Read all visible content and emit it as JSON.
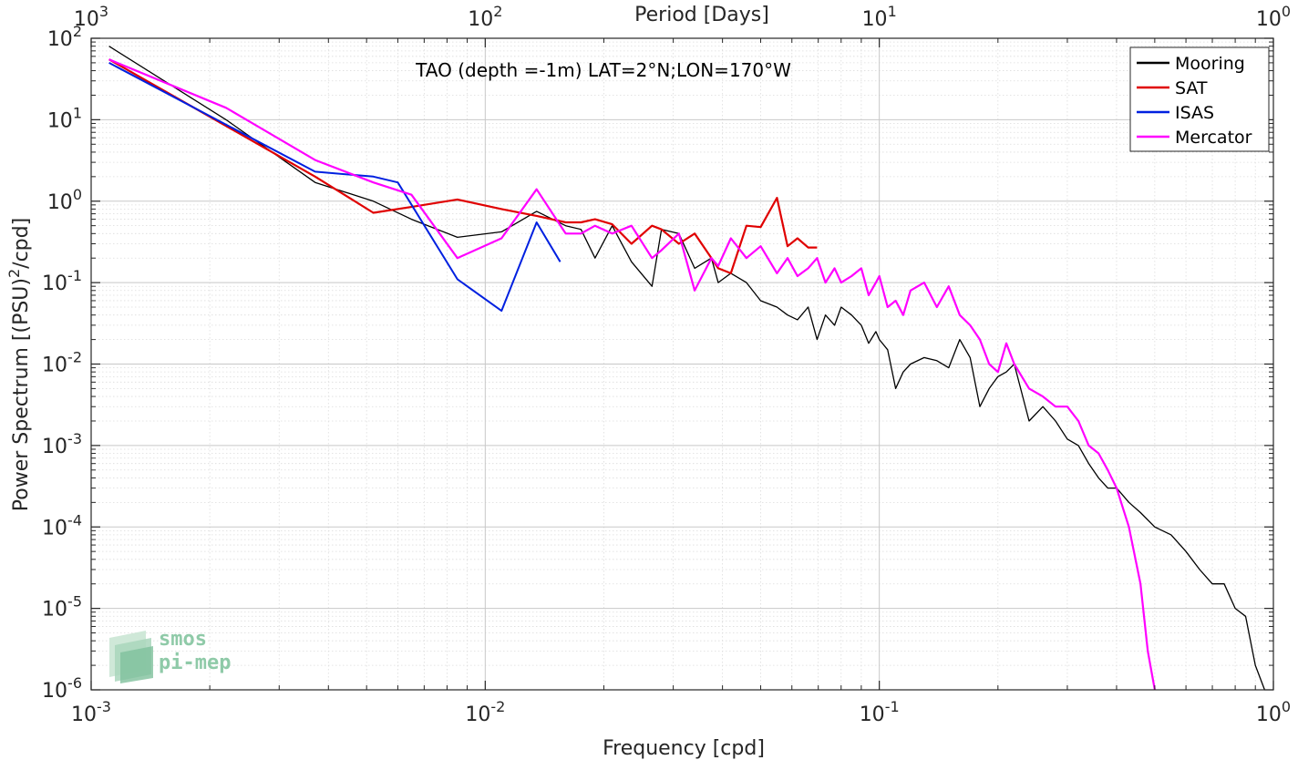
{
  "chart_data": {
    "type": "line",
    "title": "TAO (depth =-1m) LAT=2°N;LON=170°W",
    "xlabel": "Frequency [cpd]",
    "ylabel": "Power Spectrum [(PSU)²/cpd]",
    "top_xlabel": "Period [Days]",
    "xscale": "log",
    "yscale": "log",
    "xlim": [
      0.001,
      1
    ],
    "ylim": [
      1e-06,
      100
    ],
    "top_xlim": [
      1000,
      1
    ],
    "x_ticks": [
      0.001,
      0.01,
      0.1,
      1
    ],
    "x_tick_labels": [
      [
        "10",
        "-3"
      ],
      [
        "10",
        "-2"
      ],
      [
        "10",
        "-1"
      ],
      [
        "10",
        "0"
      ]
    ],
    "top_ticks": [
      1000,
      100,
      10,
      1
    ],
    "top_tick_labels": [
      [
        "10",
        "3"
      ],
      [
        "10",
        "2"
      ],
      [
        "10",
        "1"
      ],
      [
        "10",
        "0"
      ]
    ],
    "y_ticks": [
      1e-06,
      1e-05,
      0.0001,
      0.001,
      0.01,
      0.1,
      1,
      10,
      100
    ],
    "y_tick_labels": [
      [
        "10",
        "-6"
      ],
      [
        "10",
        "-5"
      ],
      [
        "10",
        "-4"
      ],
      [
        "10",
        "-3"
      ],
      [
        "10",
        "-2"
      ],
      [
        "10",
        "-1"
      ],
      [
        "10",
        "0"
      ],
      [
        "10",
        "1"
      ],
      [
        "10",
        "2"
      ]
    ],
    "grid": true,
    "legend_position": "top-right",
    "series": [
      {
        "name": "Mooring",
        "color": "#000000",
        "width": 1.3,
        "x": [
          0.00111,
          0.0022,
          0.0037,
          0.0052,
          0.0065,
          0.0085,
          0.011,
          0.0135,
          0.016,
          0.0175,
          0.019,
          0.021,
          0.0235,
          0.0265,
          0.028,
          0.031,
          0.034,
          0.0375,
          0.039,
          0.042,
          0.046,
          0.05,
          0.055,
          0.0585,
          0.062,
          0.066,
          0.0695,
          0.073,
          0.077,
          0.08,
          0.085,
          0.09,
          0.094,
          0.098,
          0.1,
          0.105,
          0.11,
          0.115,
          0.12,
          0.13,
          0.14,
          0.15,
          0.16,
          0.17,
          0.18,
          0.19,
          0.2,
          0.21,
          0.22,
          0.24,
          0.26,
          0.28,
          0.3,
          0.32,
          0.34,
          0.36,
          0.38,
          0.4,
          0.43,
          0.46,
          0.5,
          0.55,
          0.6,
          0.65,
          0.7,
          0.75,
          0.8,
          0.85,
          0.9,
          0.95
        ],
        "y": [
          80,
          10,
          1.7,
          1.0,
          0.6,
          0.36,
          0.42,
          0.75,
          0.5,
          0.45,
          0.2,
          0.5,
          0.18,
          0.09,
          0.45,
          0.4,
          0.15,
          0.2,
          0.1,
          0.13,
          0.1,
          0.06,
          0.05,
          0.04,
          0.035,
          0.05,
          0.02,
          0.04,
          0.03,
          0.05,
          0.04,
          0.03,
          0.018,
          0.025,
          0.02,
          0.015,
          0.005,
          0.008,
          0.01,
          0.012,
          0.011,
          0.009,
          0.02,
          0.012,
          0.003,
          0.005,
          0.007,
          0.008,
          0.01,
          0.002,
          0.003,
          0.002,
          0.0012,
          0.001,
          0.0006,
          0.0004,
          0.0003,
          0.0003,
          0.0002,
          0.00015,
          0.0001,
          8e-05,
          5e-05,
          3e-05,
          2e-05,
          2e-05,
          1e-05,
          8e-06,
          2e-06,
          1e-06
        ]
      },
      {
        "name": "SAT",
        "color": "#e00000",
        "width": 2.2,
        "x": [
          0.00111,
          0.0037,
          0.0052,
          0.0065,
          0.0085,
          0.011,
          0.0135,
          0.016,
          0.0175,
          0.019,
          0.021,
          0.0235,
          0.0265,
          0.028,
          0.031,
          0.034,
          0.0375,
          0.039,
          0.042,
          0.046,
          0.05,
          0.055,
          0.0585,
          0.062,
          0.066,
          0.0695
        ],
        "y": [
          55,
          2.0,
          0.72,
          0.85,
          1.05,
          0.8,
          0.66,
          0.55,
          0.55,
          0.6,
          0.52,
          0.3,
          0.5,
          0.45,
          0.3,
          0.4,
          0.2,
          0.15,
          0.13,
          0.5,
          0.48,
          1.1,
          0.28,
          0.35,
          0.27,
          0.27
        ]
      },
      {
        "name": "ISAS",
        "color": "#0020e0",
        "width": 2.0,
        "x": [
          0.00111,
          0.0037,
          0.0052,
          0.006,
          0.0085,
          0.011,
          0.0135,
          0.0155
        ],
        "y": [
          50,
          2.3,
          2.0,
          1.7,
          0.11,
          0.045,
          0.55,
          0.18
        ]
      },
      {
        "name": "Mercator",
        "color": "#ff00ff",
        "width": 2.2,
        "x": [
          0.00111,
          0.0022,
          0.0037,
          0.0052,
          0.0065,
          0.0085,
          0.011,
          0.0135,
          0.016,
          0.0175,
          0.019,
          0.021,
          0.0235,
          0.0265,
          0.028,
          0.031,
          0.034,
          0.0375,
          0.039,
          0.042,
          0.046,
          0.05,
          0.055,
          0.0585,
          0.062,
          0.066,
          0.0695,
          0.073,
          0.077,
          0.08,
          0.085,
          0.09,
          0.094,
          0.098,
          0.1,
          0.105,
          0.11,
          0.115,
          0.12,
          0.13,
          0.14,
          0.15,
          0.16,
          0.17,
          0.18,
          0.19,
          0.2,
          0.21,
          0.22,
          0.24,
          0.26,
          0.28,
          0.3,
          0.32,
          0.34,
          0.36,
          0.38,
          0.4,
          0.43,
          0.46,
          0.48,
          0.5
        ],
        "y": [
          55,
          14,
          3.2,
          1.7,
          1.2,
          0.2,
          0.35,
          1.4,
          0.4,
          0.4,
          0.5,
          0.4,
          0.5,
          0.2,
          0.25,
          0.4,
          0.08,
          0.2,
          0.16,
          0.35,
          0.2,
          0.28,
          0.13,
          0.2,
          0.12,
          0.15,
          0.2,
          0.1,
          0.15,
          0.1,
          0.12,
          0.15,
          0.07,
          0.1,
          0.12,
          0.05,
          0.06,
          0.04,
          0.08,
          0.1,
          0.05,
          0.09,
          0.04,
          0.03,
          0.02,
          0.01,
          0.008,
          0.018,
          0.01,
          0.005,
          0.004,
          0.003,
          0.003,
          0.002,
          0.001,
          0.0008,
          0.0005,
          0.0003,
          0.0001,
          2e-05,
          3e-06,
          1e-06
        ]
      }
    ]
  },
  "logo": {
    "line1": "smos",
    "line2": "pi-mep"
  }
}
